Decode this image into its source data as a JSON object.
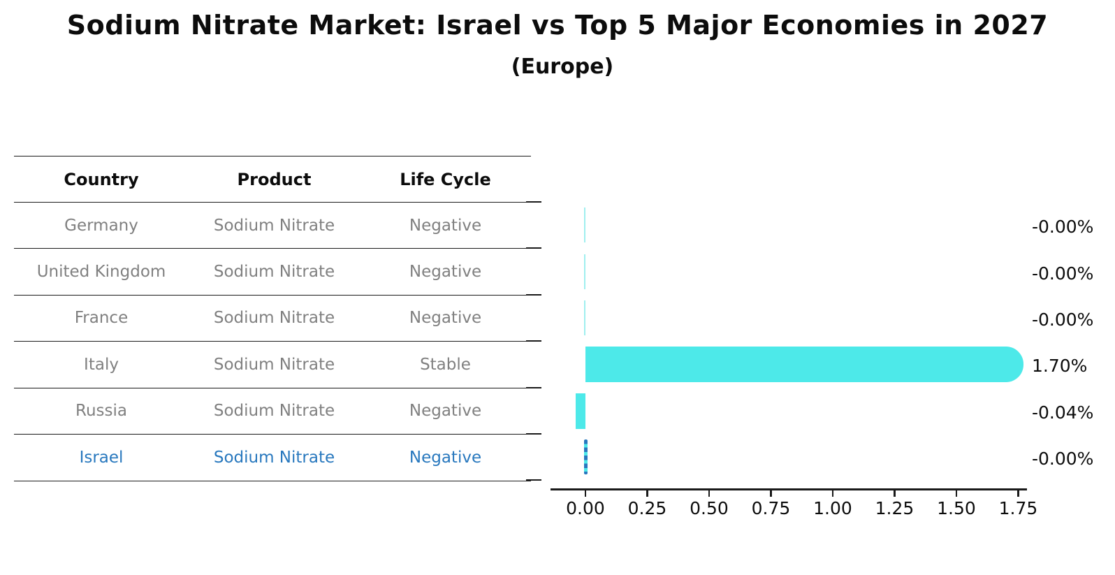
{
  "title": "Sodium Nitrate Market: Israel vs Top 5 Major Economies in 2027",
  "subtitle": "(Europe)",
  "table": {
    "headers": {
      "country": "Country",
      "product": "Product",
      "life_cycle": "Life Cycle"
    },
    "rows": [
      {
        "country": "Germany",
        "product": "Sodium Nitrate",
        "life_cycle": "Negative"
      },
      {
        "country": "United Kingdom",
        "product": "Sodium Nitrate",
        "life_cycle": "Negative"
      },
      {
        "country": "France",
        "product": "Sodium Nitrate",
        "life_cycle": "Negative"
      },
      {
        "country": "Italy",
        "product": "Sodium Nitrate",
        "life_cycle": "Stable"
      },
      {
        "country": "Russia",
        "product": "Sodium Nitrate",
        "life_cycle": "Negative"
      },
      {
        "country": "Israel",
        "product": "Sodium Nitrate",
        "life_cycle": "Negative"
      }
    ],
    "highlight_row": 5
  },
  "chart_data": {
    "type": "bar",
    "orientation": "horizontal",
    "categories": [
      "Germany",
      "United Kingdom",
      "France",
      "Italy",
      "Russia",
      "Israel"
    ],
    "values": [
      -0.0,
      -0.0,
      -0.0,
      1.7,
      -0.04,
      -0.0
    ],
    "value_labels": [
      "-0.00%",
      "-0.00%",
      "-0.00%",
      "1.70%",
      "-0.04%",
      "-0.00%"
    ],
    "x_tick_values": [
      0.0,
      0.25,
      0.5,
      0.75,
      1.0,
      1.25,
      1.5,
      1.75
    ],
    "x_tick_labels": [
      "0.00",
      "0.25",
      "0.50",
      "0.75",
      "1.00",
      "1.25",
      "1.50",
      "1.75"
    ],
    "highlight_index": 5,
    "grid": false,
    "legend": null,
    "bar_color": "#4DE9E9",
    "zero_bar_color": "#9FEFEF",
    "highlight_dash_color": "#2878BE",
    "axis_color": "#1A1A1A"
  },
  "colors": {
    "text_primary": "#0C0C0C",
    "text_muted": "#808080",
    "highlight_blue": "#2878BE",
    "bar_cyan": "#4DE9E9"
  }
}
